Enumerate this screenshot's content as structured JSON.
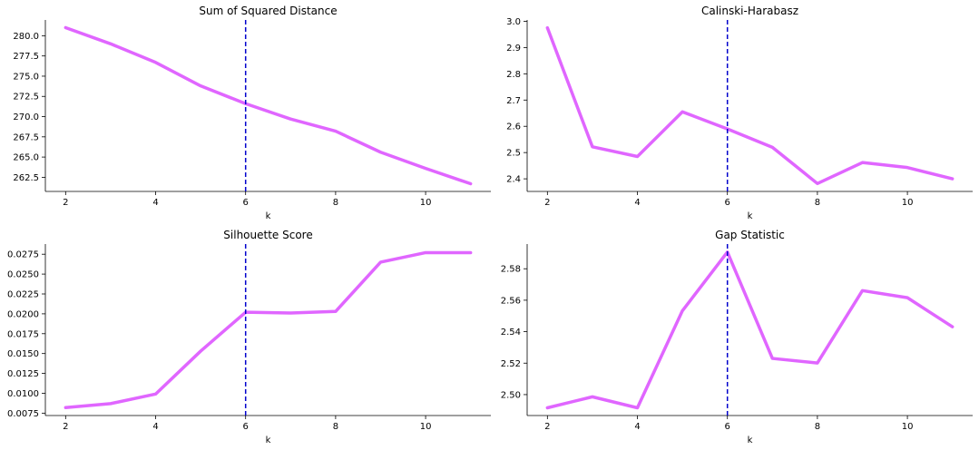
{
  "colors": {
    "line": "#e066ff",
    "vline": "#0000cd",
    "axis": "#000000"
  },
  "chart_data": [
    {
      "type": "line",
      "title": "Sum of Squared Distance",
      "xlabel": "k",
      "x": [
        2,
        3,
        4,
        5,
        6,
        7,
        8,
        9,
        10,
        11
      ],
      "values": [
        281.0,
        279.0,
        276.7,
        273.8,
        271.6,
        269.7,
        268.2,
        265.6,
        263.6,
        261.7
      ],
      "xticks": [
        2,
        4,
        6,
        8,
        10
      ],
      "yticks": [
        262.5,
        265.0,
        267.5,
        270.0,
        272.5,
        275.0,
        277.5,
        280.0
      ],
      "ytick_labels": [
        "262.5",
        "265.0",
        "267.5",
        "270.0",
        "272.5",
        "275.0",
        "277.5",
        "280.0"
      ],
      "xlim": [
        1.55,
        11.45
      ],
      "ylim": [
        260.75,
        281.95
      ],
      "vline_x": 6
    },
    {
      "type": "line",
      "title": "Calinski-Harabasz",
      "xlabel": "k",
      "x": [
        2,
        3,
        4,
        5,
        6,
        7,
        8,
        9,
        10,
        11
      ],
      "values": [
        2.975,
        2.522,
        2.485,
        2.655,
        2.59,
        2.52,
        2.382,
        2.462,
        2.443,
        2.4
      ],
      "xticks": [
        2,
        4,
        6,
        8,
        10
      ],
      "yticks": [
        2.4,
        2.5,
        2.6,
        2.7,
        2.8,
        2.9,
        3.0
      ],
      "ytick_labels": [
        "2.4",
        "2.5",
        "2.6",
        "2.7",
        "2.8",
        "2.9",
        "3.0"
      ],
      "xlim": [
        1.55,
        11.45
      ],
      "ylim": [
        2.352,
        3.005
      ],
      "vline_x": 6
    },
    {
      "type": "line",
      "title": "Silhouette Score",
      "xlabel": "k",
      "x": [
        2,
        3,
        4,
        5,
        6,
        7,
        8,
        9,
        10,
        11
      ],
      "values": [
        0.0082,
        0.0087,
        0.0099,
        0.0153,
        0.0202,
        0.0201,
        0.0203,
        0.0265,
        0.0277,
        0.0277
      ],
      "xticks": [
        2,
        4,
        6,
        8,
        10
      ],
      "yticks": [
        0.0075,
        0.01,
        0.0125,
        0.015,
        0.0175,
        0.02,
        0.0225,
        0.025,
        0.0275
      ],
      "ytick_labels": [
        "0.0075",
        "0.0100",
        "0.0125",
        "0.0150",
        "0.0175",
        "0.0200",
        "0.0225",
        "0.0250",
        "0.0275"
      ],
      "xlim": [
        1.55,
        11.45
      ],
      "ylim": [
        0.0072,
        0.02878
      ],
      "vline_x": 6
    },
    {
      "type": "line",
      "title": "Gap Statistic",
      "xlabel": "k",
      "x": [
        2,
        3,
        4,
        5,
        6,
        7,
        8,
        9,
        10,
        11
      ],
      "values": [
        2.4916,
        2.4986,
        2.4916,
        2.5533,
        2.5906,
        2.523,
        2.5201,
        2.5661,
        2.5616,
        2.5431
      ],
      "xticks": [
        2,
        4,
        6,
        8,
        10
      ],
      "yticks": [
        2.5,
        2.52,
        2.54,
        2.56,
        2.58
      ],
      "ytick_labels": [
        "2.50",
        "2.52",
        "2.54",
        "2.56",
        "2.58"
      ],
      "xlim": [
        1.55,
        11.45
      ],
      "ylim": [
        2.4867,
        2.5957
      ],
      "vline_x": 6
    }
  ]
}
